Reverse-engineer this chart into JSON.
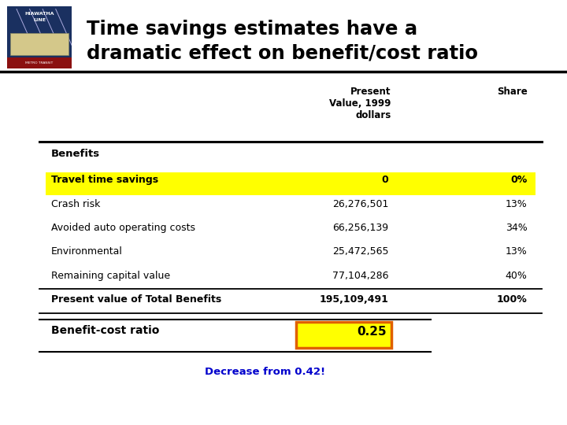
{
  "title_line1": "Time savings estimates have a",
  "title_line2": "dramatic effect on benefit/cost ratio",
  "header_col2": "Present\nValue, 1999\ndollars",
  "header_col3": "Share",
  "section_benefits": "Benefits",
  "rows": [
    {
      "label": "Travel time savings",
      "value": "0",
      "share": "0%",
      "highlight_yellow": true,
      "bold": true
    },
    {
      "label": "Crash risk",
      "value": "26,276,501",
      "share": "13%",
      "highlight_yellow": false,
      "bold": false
    },
    {
      "label": "Avoided auto operating costs",
      "value": "66,256,139",
      "share": "34%",
      "highlight_yellow": false,
      "bold": false
    },
    {
      "label": "Environmental",
      "value": "25,472,565",
      "share": "13%",
      "highlight_yellow": false,
      "bold": false
    },
    {
      "label": "Remaining capital value",
      "value": "77,104,286",
      "share": "40%",
      "highlight_yellow": false,
      "bold": false
    },
    {
      "label": "Present value of Total Benefits",
      "value": "195,109,491",
      "share": "100%",
      "highlight_yellow": false,
      "bold": true
    }
  ],
  "bcr_label": "Benefit-cost ratio",
  "bcr_value": "0.25",
  "footnote": "Decrease from 0.42!",
  "bg_color": "#ffffff",
  "yellow_color": "#ffff00",
  "orange_border": "#e06000",
  "title_color": "#000000",
  "footnote_color": "#0000cc",
  "logo_top_color": "#1a3a6b",
  "logo_bottom_color": "#8b1010",
  "logo_text_color": "#ffffff"
}
